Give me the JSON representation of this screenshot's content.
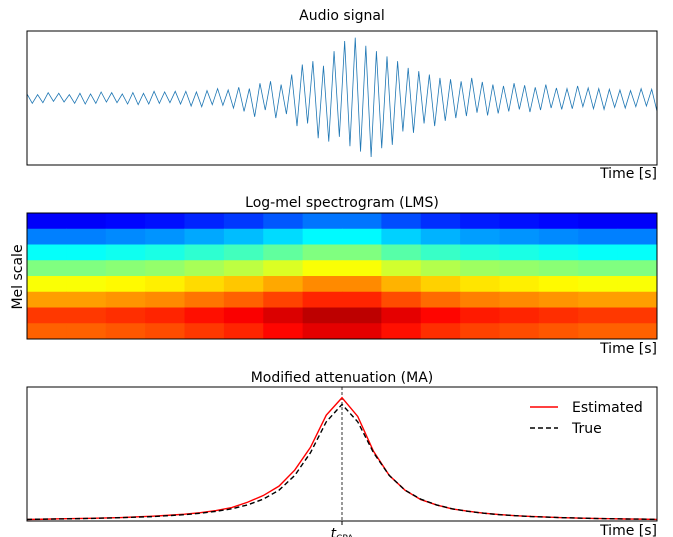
{
  "chart_data": [
    {
      "type": "line",
      "title": "Audio signal",
      "xlabel": "Time [s]",
      "color": "#1f77b4",
      "ylim": [
        -1,
        1
      ],
      "values": [
        0.06,
        -0.08,
        0.05,
        -0.07,
        0.08,
        -0.05,
        0.07,
        -0.06,
        0.05,
        -0.08,
        0.07,
        -0.09,
        0.06,
        -0.08,
        0.09,
        -0.06,
        0.08,
        -0.07,
        0.06,
        -0.09,
        0.08,
        -0.1,
        0.07,
        -0.09,
        0.1,
        -0.08,
        0.09,
        -0.07,
        0.1,
        -0.09,
        0.1,
        -0.12,
        0.09,
        -0.13,
        0.11,
        -0.1,
        0.14,
        -0.11,
        0.12,
        -0.15,
        0.16,
        -0.2,
        0.14,
        -0.28,
        0.22,
        -0.18,
        0.25,
        -0.3,
        0.2,
        -0.24,
        0.35,
        -0.42,
        0.5,
        -0.38,
        0.55,
        -0.6,
        0.48,
        -0.65,
        0.7,
        -0.58,
        0.85,
        -0.72,
        0.9,
        -0.8,
        0.78,
        -0.88,
        0.7,
        -0.75,
        0.62,
        -0.7,
        0.55,
        -0.5,
        0.45,
        -0.52,
        0.4,
        -0.38,
        0.35,
        -0.42,
        0.3,
        -0.34,
        0.28,
        -0.3,
        0.25,
        -0.27,
        0.3,
        -0.22,
        0.24,
        -0.26,
        0.2,
        -0.23,
        0.18,
        -0.2,
        0.22,
        -0.17,
        0.19,
        -0.21,
        0.16,
        -0.18,
        0.2,
        -0.15,
        0.15,
        -0.17,
        0.14,
        -0.16,
        0.18,
        -0.13,
        0.15,
        -0.16,
        0.14,
        -0.17,
        0.13,
        -0.14,
        0.12,
        -0.15,
        0.11,
        -0.13,
        0.14,
        -0.12,
        0.13,
        -0.2
      ]
    },
    {
      "type": "heatmap",
      "title": "Log-mel spectrogram (LMS)",
      "xlabel": "Time [s]",
      "ylabel": "Mel scale",
      "colormap": "jet",
      "zlim": [
        0,
        1
      ],
      "z": [
        [
          0.12,
          0.12,
          0.13,
          0.14,
          0.16,
          0.18,
          0.21,
          0.24,
          0.24,
          0.2,
          0.17,
          0.15,
          0.14,
          0.13,
          0.12,
          0.12
        ],
        [
          0.25,
          0.25,
          0.26,
          0.27,
          0.29,
          0.31,
          0.34,
          0.37,
          0.37,
          0.33,
          0.3,
          0.28,
          0.27,
          0.26,
          0.25,
          0.25
        ],
        [
          0.38,
          0.38,
          0.39,
          0.4,
          0.42,
          0.44,
          0.47,
          0.5,
          0.5,
          0.46,
          0.43,
          0.41,
          0.4,
          0.39,
          0.38,
          0.38
        ],
        [
          0.5,
          0.5,
          0.51,
          0.52,
          0.54,
          0.56,
          0.59,
          0.62,
          0.62,
          0.58,
          0.55,
          0.53,
          0.52,
          0.51,
          0.5,
          0.5
        ],
        [
          0.62,
          0.62,
          0.63,
          0.64,
          0.66,
          0.68,
          0.71,
          0.74,
          0.74,
          0.7,
          0.67,
          0.65,
          0.64,
          0.63,
          0.62,
          0.62
        ],
        [
          0.72,
          0.72,
          0.73,
          0.74,
          0.76,
          0.78,
          0.81,
          0.84,
          0.84,
          0.8,
          0.77,
          0.75,
          0.74,
          0.73,
          0.72,
          0.72
        ],
        [
          0.82,
          0.82,
          0.83,
          0.84,
          0.86,
          0.88,
          0.91,
          0.94,
          0.94,
          0.9,
          0.87,
          0.85,
          0.84,
          0.83,
          0.82,
          0.82
        ],
        [
          0.78,
          0.78,
          0.79,
          0.8,
          0.82,
          0.84,
          0.87,
          0.9,
          0.9,
          0.86,
          0.83,
          0.81,
          0.8,
          0.79,
          0.78,
          0.78
        ]
      ]
    },
    {
      "type": "line",
      "title": "Modified attenuation (MA)",
      "xlabel": "Time [s]",
      "xlim": [
        0,
        1
      ],
      "ylim": [
        0,
        1
      ],
      "xticks": [
        {
          "value": 0.5,
          "label": "t",
          "subscript": "CPA"
        }
      ],
      "tick_line": "dashed",
      "legend": "upper right",
      "x": [
        0,
        0.025,
        0.05,
        0.075,
        0.1,
        0.125,
        0.15,
        0.175,
        0.2,
        0.225,
        0.25,
        0.275,
        0.3,
        0.325,
        0.35,
        0.375,
        0.4,
        0.425,
        0.45,
        0.475,
        0.5,
        0.525,
        0.55,
        0.575,
        0.6,
        0.625,
        0.65,
        0.675,
        0.7,
        0.725,
        0.75,
        0.775,
        0.8,
        0.825,
        0.85,
        0.875,
        0.9,
        0.925,
        0.95,
        0.975,
        1
      ],
      "series": [
        {
          "name": "Estimated",
          "color": "#ff0000",
          "linestyle": "solid",
          "values": [
            0.012,
            0.013,
            0.016,
            0.018,
            0.02,
            0.023,
            0.026,
            0.031,
            0.036,
            0.043,
            0.051,
            0.062,
            0.078,
            0.1,
            0.14,
            0.19,
            0.26,
            0.38,
            0.55,
            0.79,
            0.92,
            0.78,
            0.52,
            0.34,
            0.23,
            0.16,
            0.12,
            0.09,
            0.073,
            0.058,
            0.048,
            0.04,
            0.034,
            0.029,
            0.025,
            0.022,
            0.019,
            0.017,
            0.015,
            0.014,
            0.012
          ]
        },
        {
          "name": "True",
          "color": "#000000",
          "linestyle": "dashed",
          "values": [
            0.012,
            0.014,
            0.015,
            0.017,
            0.019,
            0.022,
            0.025,
            0.029,
            0.033,
            0.04,
            0.047,
            0.058,
            0.072,
            0.091,
            0.12,
            0.163,
            0.23,
            0.34,
            0.51,
            0.74,
            0.87,
            0.74,
            0.51,
            0.34,
            0.23,
            0.163,
            0.12,
            0.091,
            0.072,
            0.058,
            0.047,
            0.04,
            0.033,
            0.029,
            0.025,
            0.022,
            0.019,
            0.017,
            0.015,
            0.014,
            0.012
          ]
        }
      ]
    }
  ]
}
